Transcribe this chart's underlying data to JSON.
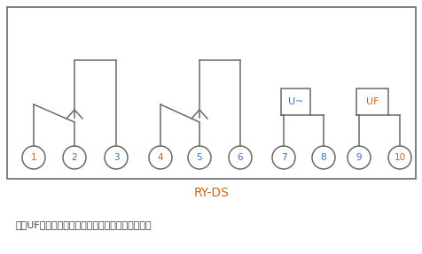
{
  "fig_width": 4.77,
  "fig_height": 2.87,
  "dpi": 100,
  "bg_color": "#ffffff",
  "border_color": "#6a6a6a",
  "line_color": "#6a6a6a",
  "circle_text_color_odd": "#c8651b",
  "circle_text_color_even": "#3a6fc4",
  "title": "RY-DS",
  "title_color": "#c8651b",
  "title_fontsize": 10,
  "note_text": "注：UF为继电器辅助电源，使用时必需长期带电。",
  "note_color": "#3a3a3a",
  "note_fontsize": 8,
  "u_label": "U~",
  "u_label_color": "#3a6fc4",
  "uf_label": "UF",
  "uf_label_color": "#c8651b",
  "terminals": [
    1,
    2,
    3,
    4,
    5,
    6,
    7,
    8,
    9,
    10
  ]
}
